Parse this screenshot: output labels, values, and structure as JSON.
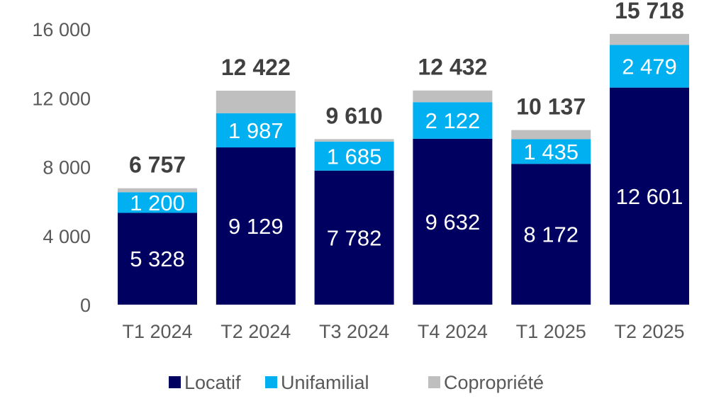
{
  "chart_data": {
    "type": "bar",
    "stacked": true,
    "title": "",
    "xlabel": "",
    "ylabel": "",
    "categories": [
      "T1 2024",
      "T2 2024",
      "T3 2024",
      "T4 2024",
      "T1 2025",
      "T2 2025"
    ],
    "series": [
      {
        "name": "Locatif",
        "color": "#000060",
        "values": [
          5328,
          9129,
          7782,
          9632,
          8172,
          12601
        ],
        "labels": [
          "5 328",
          "9 129",
          "7 782",
          "9 632",
          "8 172",
          "12 601"
        ]
      },
      {
        "name": "Unifamilial",
        "color": "#00B0F0",
        "values": [
          1200,
          1987,
          1685,
          2122,
          1435,
          2479
        ],
        "labels": [
          "1 200",
          "1 987",
          "1 685",
          "2 122",
          "1 435",
          "2 479"
        ]
      },
      {
        "name": "Copropriété",
        "color": "#BFBFBF",
        "values": [
          229,
          1306,
          143,
          678,
          530,
          638
        ],
        "labels": []
      }
    ],
    "totals": [
      6757,
      12422,
      9610,
      12432,
      10137,
      15718
    ],
    "total_labels": [
      "6 757",
      "12 422",
      "9 610",
      "12 432",
      "10 137",
      "15 718"
    ],
    "ylim": [
      0,
      16000
    ],
    "yticks": [
      0,
      4000,
      8000,
      12000,
      16000
    ],
    "ytick_labels": [
      "0",
      "4 000",
      "8 000",
      "12 000",
      "16 000"
    ],
    "grid": false,
    "legend": {
      "position": "bottom",
      "entries": [
        "Locatif",
        "Unifamilial",
        "Copropriété"
      ]
    }
  }
}
